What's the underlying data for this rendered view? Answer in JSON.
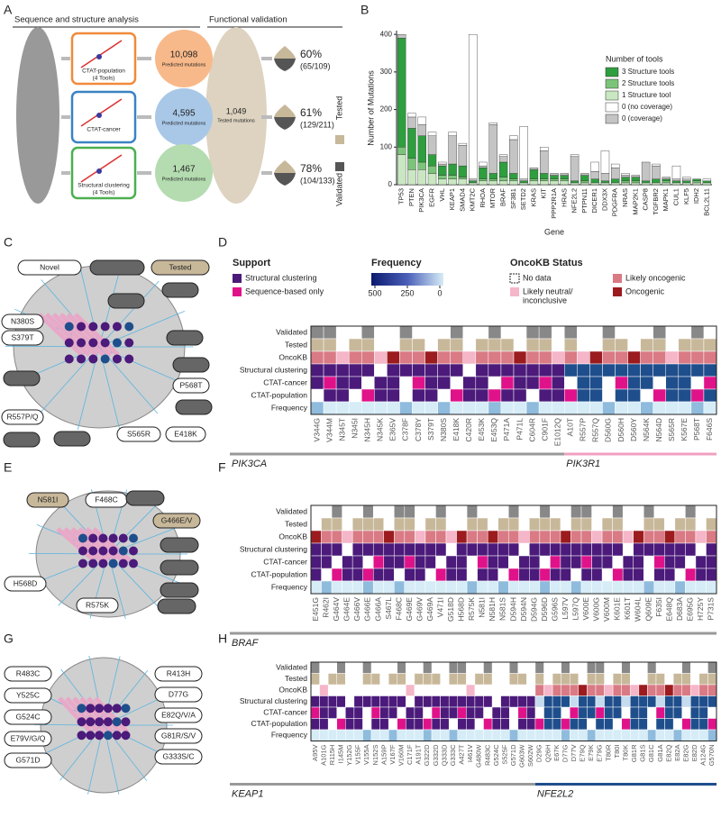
{
  "panel_labels": [
    "A",
    "B",
    "C",
    "D",
    "E",
    "F",
    "G",
    "H"
  ],
  "panel_a": {
    "left_heading": "Sequence and structure analysis",
    "right_heading": "Functional validation",
    "methods": [
      {
        "name": "CTAT-population",
        "tools": "(4 Tools)",
        "count": "10,098",
        "count_label": "Predicted mutations",
        "rate": "60%",
        "fraction": "(65/109)"
      },
      {
        "name": "CTAT-cancer",
        "tools": "",
        "count": "4,595",
        "count_label": "Predicted mutations",
        "rate": "61%",
        "fraction": "(129/211)"
      },
      {
        "name": "Structural clustering",
        "tools": "(4 Tools)",
        "count": "1,467",
        "count_label": "Predicted mutations",
        "rate": "78%",
        "fraction": "(104/133)"
      }
    ],
    "tested_count": "1,049",
    "tested_label": "Tested mutations",
    "legend": [
      "Tested",
      "Validated"
    ]
  },
  "chart_data": {
    "type": "bar",
    "stacked": true,
    "y_label": "Number of Mutations",
    "x_label": "Gene",
    "legend_title": "Number of tools",
    "categories": [
      "TP53",
      "PTEN",
      "PIK3CA",
      "EGFR",
      "VHL",
      "KEAP1",
      "SMAD4",
      "KMT2C",
      "RHOA",
      "MTOR",
      "BRAF",
      "SF3B1",
      "SETD2",
      "KRAS",
      "KIT",
      "PPP2R1A",
      "HRAS",
      "NFE2L2",
      "PTPN11",
      "DICER1",
      "DDX3X",
      "PDGFRA",
      "NRAS",
      "MAP2K1",
      "CASP8",
      "TGFBR2",
      "MAPK1",
      "CUL1",
      "KLF5",
      "IDH2",
      "BCL2L11"
    ],
    "series": [
      {
        "name": "3 Structure tools",
        "color": "#2e9e3e",
        "values": [
          290,
          80,
          70,
          30,
          25,
          30,
          30,
          5,
          30,
          15,
          40,
          15,
          5,
          25,
          15,
          10,
          10,
          5,
          15,
          10,
          5,
          10,
          10,
          10,
          5,
          10,
          5,
          5,
          5,
          5,
          5
        ]
      },
      {
        "name": "2 Structure tools",
        "color": "#7cc47a",
        "values": [
          20,
          30,
          20,
          20,
          10,
          10,
          5,
          0,
          5,
          5,
          10,
          5,
          0,
          5,
          5,
          5,
          5,
          0,
          5,
          0,
          0,
          0,
          5,
          5,
          0,
          0,
          5,
          0,
          0,
          5,
          0
        ]
      },
      {
        "name": "1 Structure tool",
        "color": "#c9e8c2",
        "values": [
          80,
          40,
          40,
          30,
          15,
          15,
          15,
          5,
          10,
          10,
          10,
          10,
          5,
          10,
          10,
          10,
          10,
          5,
          5,
          5,
          5,
          5,
          5,
          5,
          5,
          5,
          5,
          5,
          5,
          5,
          5
        ]
      },
      {
        "name": "0 (no coverage)",
        "color": "#ffffff",
        "values": [
          0,
          10,
          20,
          10,
          5,
          10,
          5,
          385,
          10,
          5,
          5,
          10,
          140,
          0,
          10,
          0,
          0,
          5,
          0,
          25,
          60,
          10,
          5,
          0,
          0,
          5,
          0,
          35,
          5,
          0,
          5
        ]
      },
      {
        "name": "0 (coverage)",
        "color": "#c4c4c4",
        "values": [
          10,
          30,
          30,
          50,
          5,
          75,
          55,
          5,
          5,
          130,
          15,
          90,
          5,
          5,
          60,
          5,
          5,
          65,
          5,
          20,
          20,
          30,
          5,
          5,
          50,
          35,
          5,
          5,
          5,
          0,
          0
        ]
      }
    ],
    "ylim": [
      0,
      410
    ],
    "yticks": [
      0,
      100,
      200,
      300,
      400
    ],
    "legend_position": "upper right"
  },
  "panel_c": {
    "legend": [
      "Novel",
      "Tested"
    ],
    "labels": [
      "N380S",
      "S379T",
      "R557P/Q",
      "S565R",
      "E418K",
      "P568T"
    ]
  },
  "panel_e": {
    "labels": [
      "N581I",
      "F468C",
      "G466E/V",
      "H568D",
      "R575K"
    ]
  },
  "panel_g": {
    "labels": [
      "R483C",
      "Y525C",
      "G524C",
      "E79V/G/Q",
      "G571D",
      "R413H",
      "D77G",
      "E82Q/V/A",
      "G81R/S/V",
      "G333S/C"
    ]
  },
  "heatmap_legend": {
    "support_title": "Support",
    "support": [
      "Structural clustering",
      "Sequence-based only"
    ],
    "frequency_title": "Frequency",
    "frequency_ticks": [
      500,
      250,
      0
    ],
    "oncokb_title": "OncoKB Status",
    "oncokb": [
      "No data",
      "Likely oncogenic",
      "Likely neutral/",
      "inconclusive",
      "Oncogenic"
    ]
  },
  "heatmaps": [
    {
      "rows": [
        "Validated",
        "Tested",
        "OncoKB",
        "Structural clustering",
        "CTAT-cancer",
        "CTAT-population",
        "Frequency"
      ],
      "genes": [
        {
          "name": "PIK3CA",
          "color": "#999999",
          "columns": [
            "V344G",
            "V344M",
            "N345T",
            "N345I",
            "N345H",
            "N345K",
            "E365V",
            "C378F",
            "C378Y",
            "S379T",
            "N380S",
            "E418K",
            "C420R",
            "E453K",
            "E453Q",
            "P471A",
            "P471L",
            "C604R",
            "C901F",
            "E1012Q"
          ]
        },
        {
          "name": "PIK3R1",
          "color": "#f0a0c0",
          "columns": [
            "A10T",
            "R557P",
            "R557Q",
            "D560G",
            "D560H",
            "D560Y",
            "N564K",
            "N564D",
            "S565R",
            "K567E",
            "P568T",
            "F646S"
          ]
        }
      ]
    },
    {
      "rows": [
        "Validated",
        "Tested",
        "OncoKB",
        "Structural clustering",
        "CTAT-cancer",
        "CTAT-population",
        "Frequency"
      ],
      "genes": [
        {
          "name": "BRAF",
          "color": "#999999",
          "columns": [
            "E451G",
            "R462I",
            "G464V",
            "G464E",
            "G466V",
            "G466E",
            "G466A",
            "S467L",
            "F468C",
            "G469E",
            "G469V",
            "G469A",
            "V471I",
            "G518D",
            "H568D",
            "R575K",
            "N581I",
            "N581H",
            "N581S",
            "D594H",
            "D594N",
            "D594G",
            "D596D",
            "G596S",
            "L597V",
            "L597Q",
            "V600E",
            "V600G",
            "V600M",
            "K601E",
            "K601T",
            "W604L",
            "Q609E",
            "F635I",
            "E648Q",
            "D683A",
            "E695G",
            "H725Y",
            "P731S"
          ]
        }
      ]
    },
    {
      "rows": [
        "Validated",
        "Tested",
        "OncoKB",
        "Structural clustering",
        "CTAT-cancer",
        "CTAT-population",
        "Frequency"
      ],
      "genes": [
        {
          "name": "KEAP1",
          "color": "#999999",
          "columns": [
            "A95V",
            "A101G",
            "R115H",
            "I145M",
            "Y152G",
            "V155F",
            "V155A",
            "N152S",
            "A159P",
            "V167F",
            "V160M",
            "C171F",
            "A191T",
            "G322D",
            "G332D",
            "Q333D",
            "G333C",
            "A427T",
            "I461V",
            "G480W",
            "R483C",
            "G524C",
            "S525F",
            "G571D",
            "G603W",
            "S602W"
          ]
        },
        {
          "name": "NFE2L2",
          "color": "#1f4e8c",
          "columns": [
            "D29G",
            "Q26H",
            "E67K",
            "D77G",
            "D77V",
            "E79Q",
            "E79K",
            "E79G",
            "T80R",
            "T80I",
            "T80K",
            "G81R",
            "G81S",
            "G81C",
            "G81A",
            "E82Q",
            "E82A",
            "E82G",
            "E82D",
            "A124G",
            "G570N"
          ]
        }
      ]
    }
  ]
}
